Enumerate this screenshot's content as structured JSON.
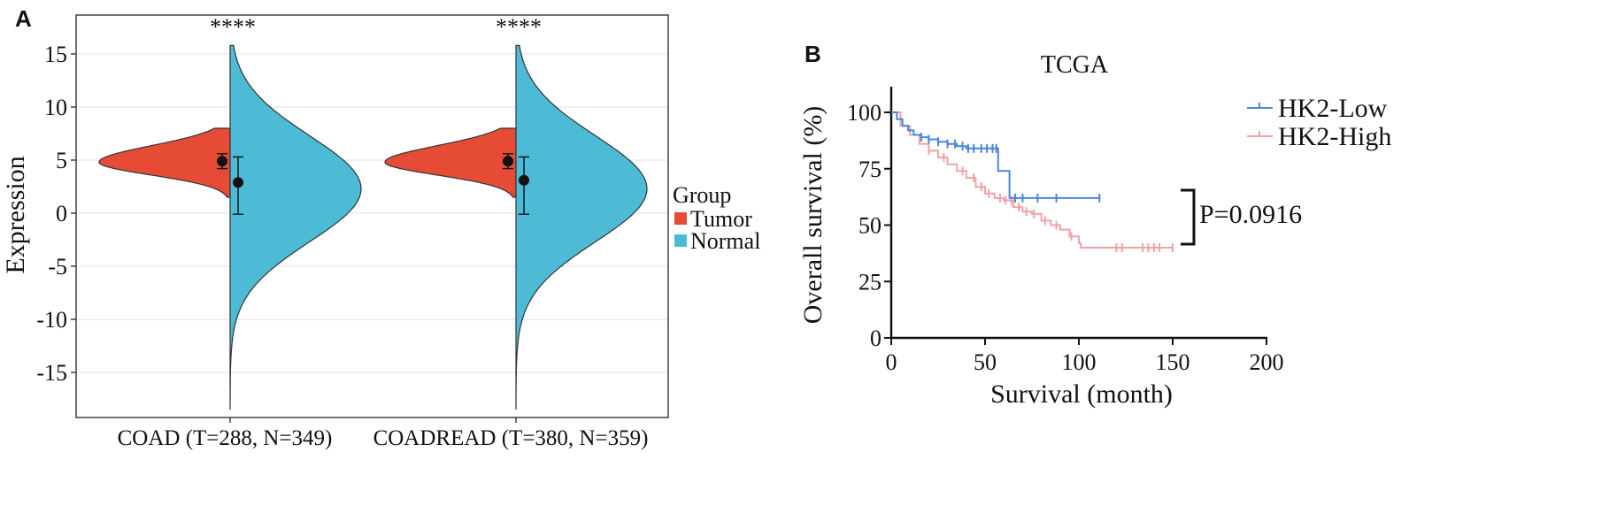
{
  "panel_a": {
    "letter": "A"
  },
  "panel_b": {
    "letter": "B"
  },
  "chart_data": [
    {
      "type": "violin",
      "title": "",
      "xlabel": "",
      "ylabel": "Expression",
      "ylim": [
        -19,
        18.5
      ],
      "yticks": [
        15,
        10,
        5,
        0,
        -5,
        -10,
        -15
      ],
      "ytick_labels": [
        "15",
        "10",
        "5",
        "0",
        "-5",
        "-10",
        "-15"
      ],
      "categories": [
        "COAD (T=288, N=349)",
        "COADREAD (T=380, N=359)"
      ],
      "significance": [
        "****",
        "****"
      ],
      "legend": {
        "title": "Group",
        "position": "right",
        "items": [
          {
            "label": "Tumor",
            "color": "#e64b35"
          },
          {
            "label": "Normal",
            "color": "#4dbbd5"
          }
        ]
      },
      "series": [
        {
          "name": "Tumor",
          "color": "#e64b35",
          "side": "left",
          "ranges": [
            [
              1.5,
              8.0
            ],
            [
              1.5,
              8.0
            ]
          ],
          "mode": [
            4.8,
            4.8
          ],
          "mean": [
            4.9,
            4.9
          ],
          "error": [
            [
              4.2,
              5.6
            ],
            [
              4.2,
              5.6
            ]
          ]
        },
        {
          "name": "Normal",
          "color": "#4dbbd5",
          "side": "right",
          "ranges": [
            [
              -18.5,
              15.8
            ],
            [
              -18.5,
              15.8
            ]
          ],
          "mode": [
            2.3,
            2.3
          ],
          "mean": [
            2.9,
            3.1
          ],
          "error": [
            [
              -0.1,
              5.3
            ],
            [
              -0.1,
              5.3
            ]
          ]
        }
      ],
      "grid": true
    },
    {
      "type": "line",
      "subtype": "kaplan-meier",
      "title": "TCGA",
      "xlabel": "Survival (month)",
      "ylabel": "Overall survival (%)",
      "xlim": [
        0,
        200
      ],
      "ylim": [
        0,
        110
      ],
      "xticks": [
        0,
        50,
        100,
        150,
        200
      ],
      "yticks": [
        0,
        25,
        50,
        75,
        100
      ],
      "annotation": "P=0.0916",
      "grid": false,
      "legend": {
        "position": "top-right"
      },
      "series": [
        {
          "name": "HK2-Low",
          "color": "#4a86d8",
          "x": [
            0,
            3,
            6,
            9,
            12,
            16,
            20,
            25,
            30,
            35,
            40,
            45,
            50,
            57,
            57,
            63,
            63,
            111
          ],
          "y": [
            100,
            97,
            94,
            92,
            90,
            89,
            88,
            87,
            86,
            85,
            84,
            84,
            84,
            84,
            74,
            74,
            62,
            62
          ],
          "censor_x": [
            16,
            20,
            25,
            30,
            34,
            38,
            41,
            44,
            48,
            51,
            54,
            56,
            66,
            70,
            78,
            88,
            111
          ]
        },
        {
          "name": "HK2-High",
          "color": "#f0a2a8",
          "x": [
            0,
            5,
            10,
            15,
            20,
            25,
            30,
            35,
            40,
            45,
            50,
            55,
            60,
            65,
            70,
            75,
            80,
            85,
            90,
            95,
            100,
            101,
            150
          ],
          "y": [
            100,
            94,
            90,
            86,
            83,
            80,
            77,
            74,
            71,
            67,
            64,
            62,
            61,
            58,
            56,
            55,
            52,
            50,
            48,
            45,
            42,
            40,
            40
          ],
          "censor_x": [
            20,
            28,
            38,
            44,
            48,
            52,
            58,
            61,
            64,
            68,
            72,
            76,
            82,
            88,
            96,
            120,
            123,
            134,
            137,
            140,
            143,
            150
          ]
        }
      ]
    }
  ]
}
